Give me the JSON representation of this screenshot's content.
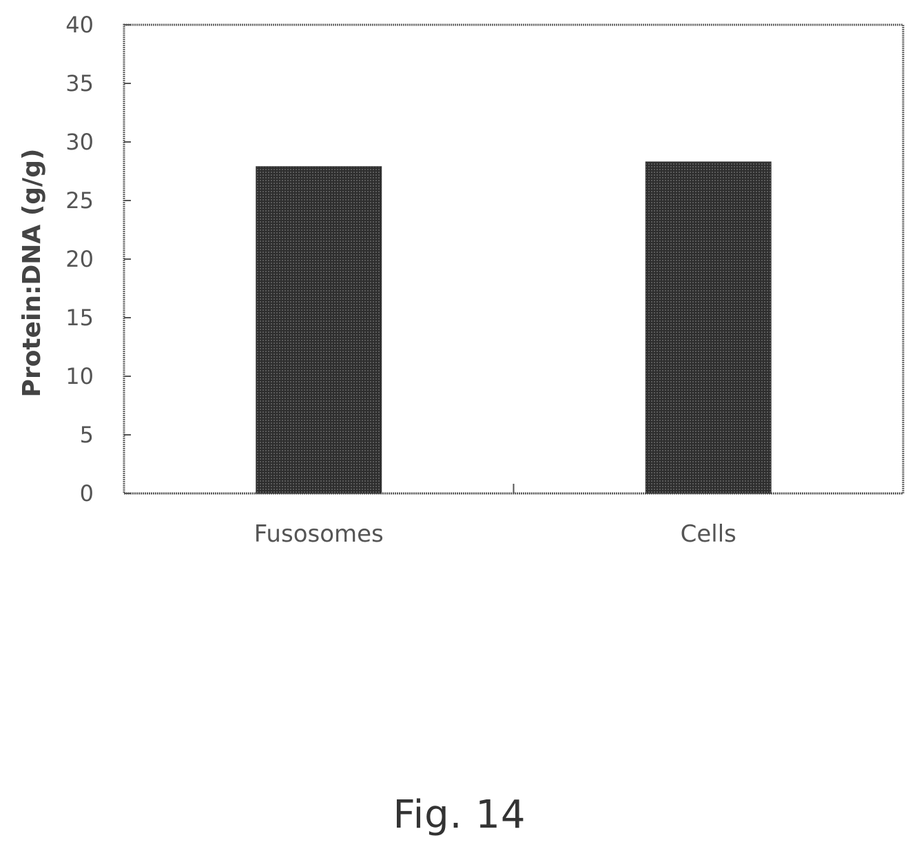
{
  "chart_data": {
    "type": "bar",
    "categories": [
      "Fusosomes",
      "Cells"
    ],
    "values": [
      27.9,
      28.3
    ],
    "title": "",
    "xlabel": "",
    "ylabel": "Protein:DNA (g/g)",
    "ylim": [
      0,
      40
    ],
    "yticks": [
      0,
      5,
      10,
      15,
      20,
      25,
      30,
      35,
      40
    ],
    "grid": false,
    "legend": "none",
    "bar_color": "#3a3a3a"
  },
  "caption": "Fig. 14"
}
